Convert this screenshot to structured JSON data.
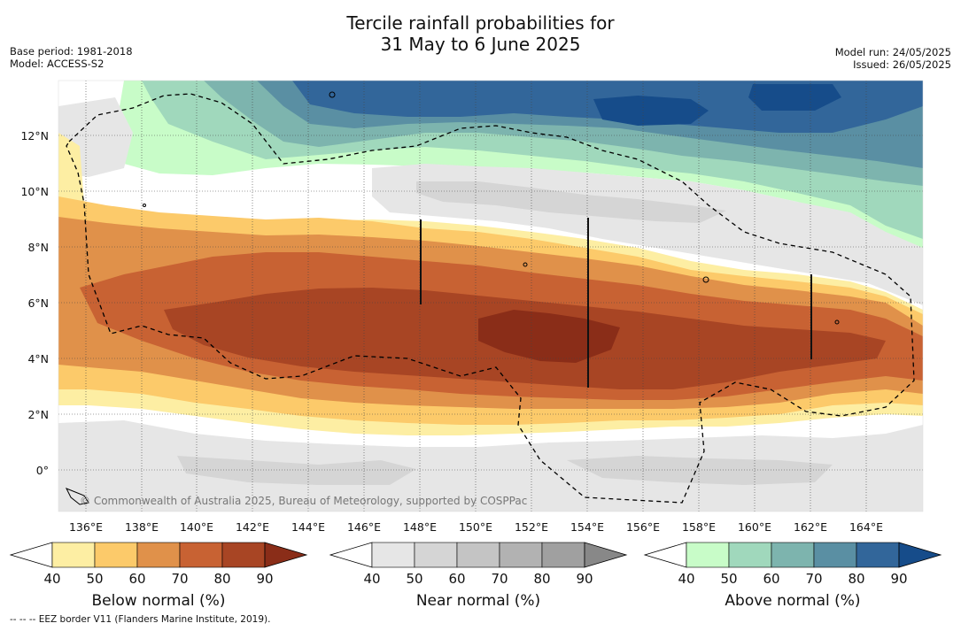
{
  "title": {
    "line1": "Tercile rainfall probabilities for",
    "line2": "31 May to 6 June 2025"
  },
  "meta": {
    "base_period": "Base period: 1981-2018",
    "model": "Model: ACCESS-S2",
    "model_run": "Model run: 24/05/2025",
    "issued": "Issued: 26/05/2025"
  },
  "map": {
    "lat_labels": [
      "12°N",
      "10°N",
      "8°N",
      "6°N",
      "4°N",
      "2°N",
      "0°"
    ],
    "lon_labels": [
      "136°E",
      "138°E",
      "140°E",
      "142°E",
      "144°E",
      "146°E",
      "148°E",
      "150°E",
      "152°E",
      "154°E",
      "156°E",
      "158°E",
      "160°E",
      "162°E",
      "164°E"
    ],
    "copyright": "© Commonwealth of Australia 2025, Bureau of Meteorology, supported by COSPPac"
  },
  "colorbars": [
    {
      "label": "Below normal (%)",
      "ticks": [
        "40",
        "50",
        "60",
        "70",
        "80",
        "90"
      ],
      "colors": [
        "#fdeea3",
        "#fcca6a",
        "#e0914a",
        "#c86233",
        "#a84524",
        "#8a2d18"
      ]
    },
    {
      "label": "Near normal (%)",
      "ticks": [
        "40",
        "50",
        "60",
        "70",
        "80",
        "90"
      ],
      "colors": [
        "#e6e6e6",
        "#d5d5d5",
        "#c4c4c4",
        "#b2b2b2",
        "#a0a0a0",
        "#888888"
      ]
    },
    {
      "label": "Above normal (%)",
      "ticks": [
        "40",
        "50",
        "60",
        "70",
        "80",
        "90"
      ],
      "colors": [
        "#c8fcc8",
        "#a0d8bc",
        "#7db4ae",
        "#5a8fa3",
        "#32669a",
        "#164c8a"
      ]
    }
  ],
  "footer": "-- -- -- EEZ border V11 (Flanders Marine Institute, 2019)."
}
